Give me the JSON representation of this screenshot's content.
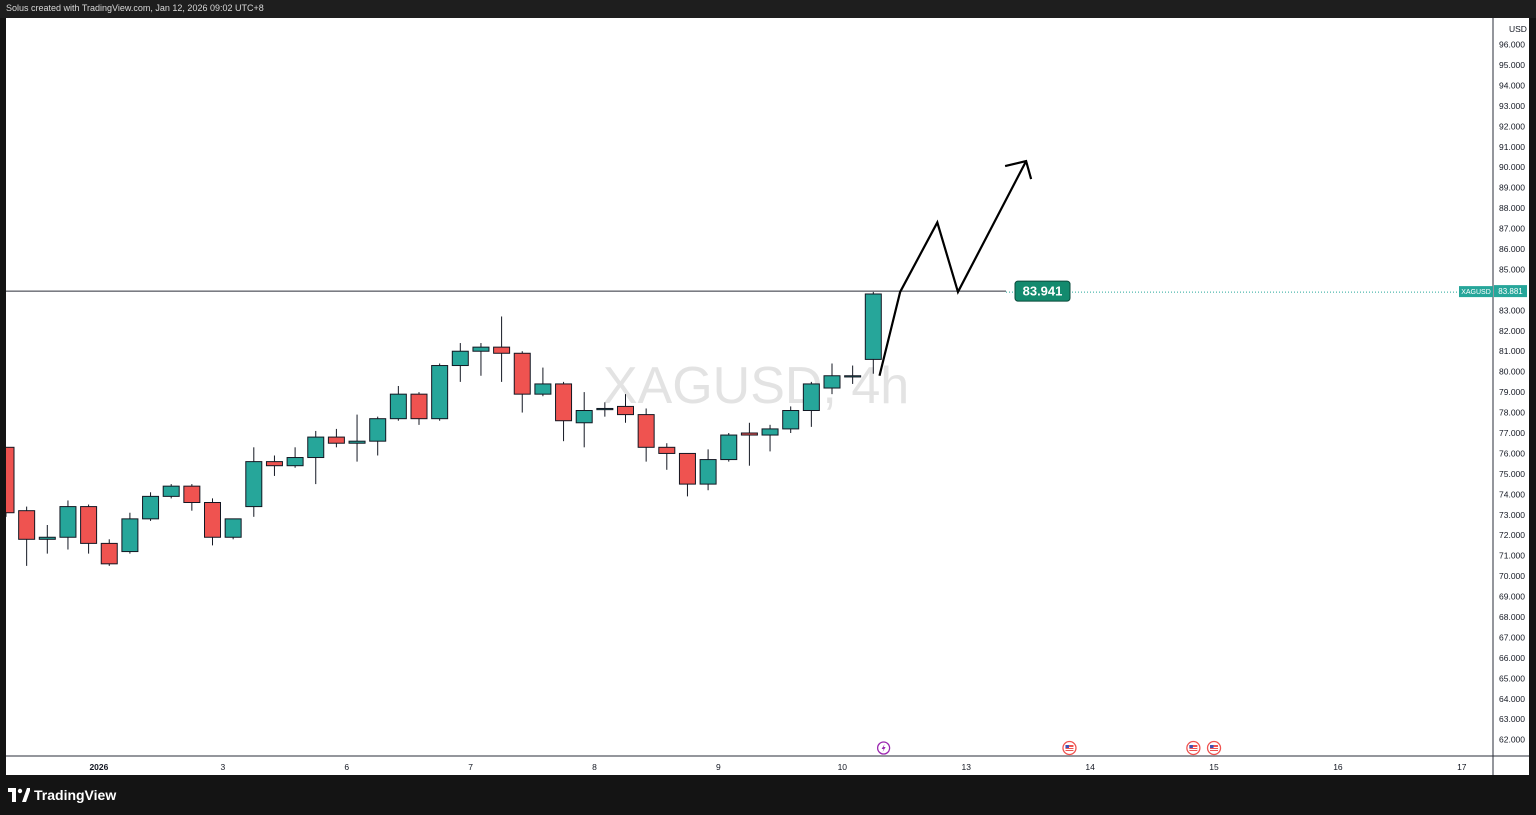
{
  "header": {
    "attribution": "Solus created with TradingView.com, Jan 12, 2026 09:02 UTC+8"
  },
  "footer": {
    "brand": "TradingView"
  },
  "colors": {
    "up": "#26a69a",
    "down": "#ef5350",
    "grid_line": "#2a2e39",
    "price_badge": "#138a6e"
  },
  "icons": [
    "tradingview-logo-icon",
    "lightning-event-icon",
    "us-flag-event-icon"
  ],
  "chart_data": {
    "type": "candlestick",
    "symbol": "XAGUSD",
    "interval": "4h",
    "watermark": "XAGUSD, 4h",
    "currency": "USD",
    "ylim": [
      61.2,
      97.3
    ],
    "y_ticks": [
      "62.000",
      "63.000",
      "64.000",
      "65.000",
      "66.000",
      "67.000",
      "68.000",
      "69.000",
      "70.000",
      "71.000",
      "72.000",
      "73.000",
      "74.000",
      "75.000",
      "76.000",
      "77.000",
      "78.000",
      "79.000",
      "80.000",
      "81.000",
      "82.000",
      "83.000",
      "84.000",
      "85.000",
      "86.000",
      "87.000",
      "88.000",
      "89.000",
      "90.000",
      "91.000",
      "92.000",
      "93.000",
      "94.000",
      "95.000",
      "96.000"
    ],
    "x_ticks": [
      {
        "i": 4.5,
        "label": "2026"
      },
      {
        "i": 10.5,
        "label": "3"
      },
      {
        "i": 16.5,
        "label": "6"
      },
      {
        "i": 22.5,
        "label": "7"
      },
      {
        "i": 28.5,
        "label": "8"
      },
      {
        "i": 34.5,
        "label": "9"
      },
      {
        "i": 40.5,
        "label": "10"
      },
      {
        "i": 46.5,
        "label": "13"
      },
      {
        "i": 52.5,
        "label": "14"
      },
      {
        "i": 58.5,
        "label": "15"
      },
      {
        "i": 64.5,
        "label": "16"
      },
      {
        "i": 70.5,
        "label": "17"
      }
    ],
    "candles": [
      {
        "o": 76.3,
        "h": 76.3,
        "l": 72.9,
        "c": 73.1
      },
      {
        "o": 73.2,
        "h": 73.4,
        "l": 70.5,
        "c": 71.8
      },
      {
        "o": 71.8,
        "h": 72.5,
        "l": 71.1,
        "c": 71.9
      },
      {
        "o": 71.9,
        "h": 73.7,
        "l": 71.3,
        "c": 73.4
      },
      {
        "o": 73.4,
        "h": 73.5,
        "l": 71.1,
        "c": 71.6
      },
      {
        "o": 71.6,
        "h": 71.8,
        "l": 70.5,
        "c": 70.6
      },
      {
        "o": 71.2,
        "h": 73.1,
        "l": 71.1,
        "c": 72.8
      },
      {
        "o": 72.8,
        "h": 74.1,
        "l": 72.7,
        "c": 73.9
      },
      {
        "o": 73.9,
        "h": 74.5,
        "l": 73.8,
        "c": 74.4
      },
      {
        "o": 74.4,
        "h": 74.5,
        "l": 73.2,
        "c": 73.6
      },
      {
        "o": 73.6,
        "h": 73.8,
        "l": 71.5,
        "c": 71.9
      },
      {
        "o": 71.9,
        "h": 72.8,
        "l": 71.8,
        "c": 72.8
      },
      {
        "o": 73.4,
        "h": 76.3,
        "l": 72.9,
        "c": 75.6
      },
      {
        "o": 75.6,
        "h": 75.9,
        "l": 74.9,
        "c": 75.4
      },
      {
        "o": 75.4,
        "h": 76.3,
        "l": 75.3,
        "c": 75.8
      },
      {
        "o": 75.8,
        "h": 77.1,
        "l": 74.5,
        "c": 76.8
      },
      {
        "o": 76.8,
        "h": 77.2,
        "l": 76.3,
        "c": 76.5
      },
      {
        "o": 76.5,
        "h": 77.9,
        "l": 75.6,
        "c": 76.6
      },
      {
        "o": 76.6,
        "h": 77.8,
        "l": 75.9,
        "c": 77.7
      },
      {
        "o": 77.7,
        "h": 79.3,
        "l": 77.6,
        "c": 78.9
      },
      {
        "o": 78.9,
        "h": 79.0,
        "l": 77.4,
        "c": 77.7
      },
      {
        "o": 77.7,
        "h": 80.4,
        "l": 77.6,
        "c": 80.3
      },
      {
        "o": 80.3,
        "h": 81.4,
        "l": 79.5,
        "c": 81.0
      },
      {
        "o": 81.0,
        "h": 81.4,
        "l": 79.8,
        "c": 81.2
      },
      {
        "o": 81.2,
        "h": 82.7,
        "l": 79.5,
        "c": 80.9
      },
      {
        "o": 80.9,
        "h": 81.0,
        "l": 78.0,
        "c": 78.9
      },
      {
        "o": 78.9,
        "h": 80.2,
        "l": 78.8,
        "c": 79.4
      },
      {
        "o": 79.4,
        "h": 79.5,
        "l": 76.6,
        "c": 77.6
      },
      {
        "o": 77.5,
        "h": 79.0,
        "l": 76.3,
        "c": 78.1
      },
      {
        "o": 78.2,
        "h": 78.5,
        "l": 77.8,
        "c": 78.2
      },
      {
        "o": 78.3,
        "h": 78.9,
        "l": 77.5,
        "c": 77.9
      },
      {
        "o": 77.9,
        "h": 78.2,
        "l": 75.6,
        "c": 76.3
      },
      {
        "o": 76.3,
        "h": 76.5,
        "l": 75.2,
        "c": 76.0
      },
      {
        "o": 76.0,
        "h": 76.0,
        "l": 73.9,
        "c": 74.5
      },
      {
        "o": 74.5,
        "h": 76.2,
        "l": 74.2,
        "c": 75.7
      },
      {
        "o": 75.7,
        "h": 77.0,
        "l": 75.6,
        "c": 76.9
      },
      {
        "o": 77.0,
        "h": 77.5,
        "l": 75.4,
        "c": 76.9
      },
      {
        "o": 76.9,
        "h": 77.4,
        "l": 76.1,
        "c": 77.2
      },
      {
        "o": 77.2,
        "h": 78.3,
        "l": 77.0,
        "c": 78.1
      },
      {
        "o": 78.1,
        "h": 79.5,
        "l": 77.3,
        "c": 79.4
      },
      {
        "o": 79.2,
        "h": 80.4,
        "l": 78.9,
        "c": 79.8
      },
      {
        "o": 79.8,
        "h": 80.3,
        "l": 79.4,
        "c": 79.8
      },
      {
        "o": 80.6,
        "h": 83.9,
        "l": 79.9,
        "c": 83.8
      }
    ],
    "price_line": {
      "price": 83.941,
      "label": "83.941"
    },
    "last_price_tag": {
      "symbol": "XAGUSD",
      "price": "83.881"
    },
    "projection": [
      {
        "i": 42.3,
        "p": 79.8
      },
      {
        "i": 43.3,
        "p": 83.9
      },
      {
        "i": 45.1,
        "p": 87.3
      },
      {
        "i": 46.1,
        "p": 83.9
      },
      {
        "i": 49.4,
        "p": 90.3
      }
    ],
    "events": [
      {
        "i": 42.5,
        "kind": "lightning"
      },
      {
        "i": 51.5,
        "kind": "us-flag"
      },
      {
        "i": 57.5,
        "kind": "us-flag"
      },
      {
        "i": 58.5,
        "kind": "us-flag"
      }
    ]
  }
}
